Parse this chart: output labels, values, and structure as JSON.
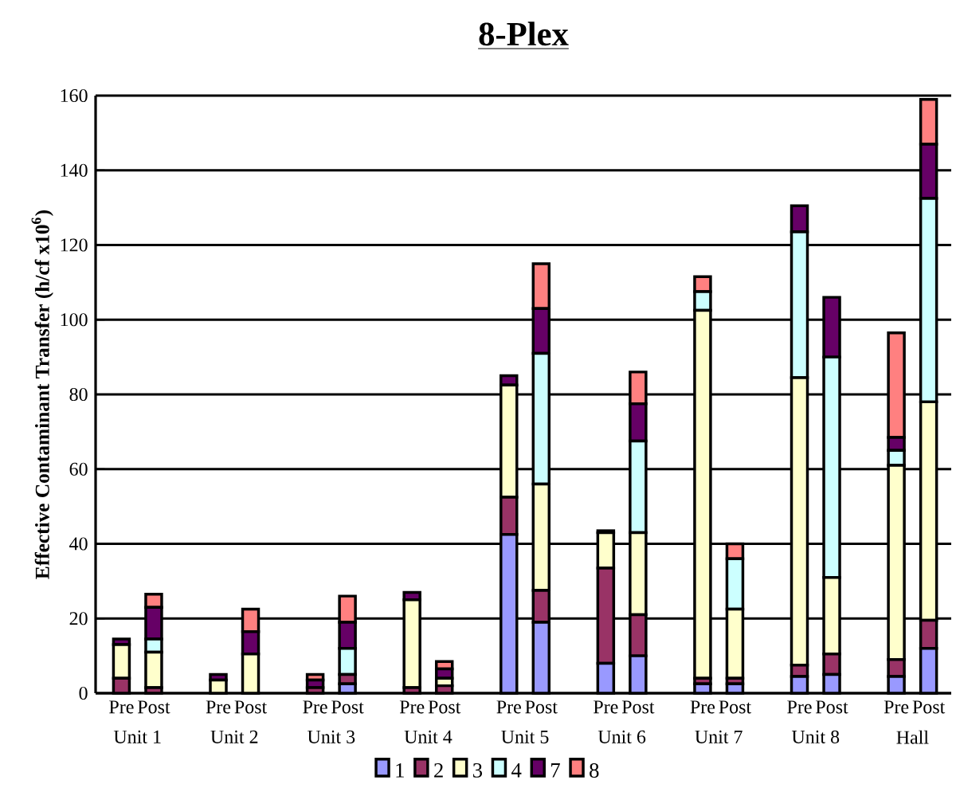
{
  "chart_data": {
    "type": "bar",
    "title": "8-Plex",
    "ylabel": "Effective Contaminant Transfer (h/cf x10$^{6}$)",
    "categories": [
      "Pre",
      "Post",
      null,
      "Pre",
      "Post",
      null,
      "Pre",
      "Post",
      null,
      "Pre",
      "Post",
      null,
      "Pre",
      "Post",
      null,
      "Pre",
      "Post",
      null,
      "Pre",
      "Post",
      null,
      "Pre",
      "Post",
      null,
      "Pre",
      "Post"
    ],
    "series": [
      {
        "name": "1",
        "color": "#9999ff",
        "values": [
          0,
          0,
          null,
          0,
          0,
          null,
          0,
          2.5,
          null,
          0,
          0,
          null,
          42.5,
          19,
          null,
          8,
          10,
          null,
          2.5,
          2.5,
          null,
          4.5,
          5,
          null,
          4.5,
          12
        ]
      },
      {
        "name": "2",
        "color": "#993366",
        "values": [
          4,
          1.5,
          null,
          0,
          0,
          null,
          1.5,
          2.5,
          null,
          1.5,
          2,
          null,
          10,
          8.5,
          null,
          25.5,
          11,
          null,
          1.5,
          1.5,
          null,
          3,
          5.5,
          null,
          4.5,
          7.5
        ]
      },
      {
        "name": "3",
        "color": "#ffffcc",
        "values": [
          9,
          9.5,
          null,
          3.5,
          10.5,
          null,
          0,
          0,
          null,
          23.5,
          2,
          null,
          30,
          28.5,
          null,
          9.5,
          22,
          null,
          98.5,
          18.5,
          null,
          77,
          20.5,
          null,
          52,
          58.5
        ]
      },
      {
        "name": "4",
        "color": "#ccffff",
        "values": [
          0,
          3.5,
          null,
          0,
          0,
          null,
          0,
          7,
          null,
          0,
          0,
          null,
          0,
          35,
          null,
          0,
          24.5,
          null,
          5,
          13.5,
          null,
          39,
          59,
          null,
          4,
          54.5
        ]
      },
      {
        "name": "7",
        "color": "#660066",
        "values": [
          1.5,
          8.5,
          null,
          1.5,
          6,
          null,
          2,
          7,
          null,
          2,
          2.5,
          null,
          2.5,
          12,
          null,
          0.5,
          10,
          null,
          0,
          0,
          null,
          7,
          16,
          null,
          3.5,
          14.5
        ]
      },
      {
        "name": "8",
        "color": "#ff8080",
        "values": [
          0,
          3.5,
          null,
          0,
          6,
          null,
          1.5,
          7,
          null,
          0,
          2,
          null,
          0,
          12,
          null,
          0,
          8.5,
          null,
          4,
          4,
          null,
          0,
          0,
          null,
          28,
          12
        ]
      }
    ],
    "stacked": true,
    "ylim": [
      0,
      160
    ],
    "yticks": [
      0,
      20,
      40,
      60,
      80,
      100,
      120,
      140,
      160
    ],
    "grid": "y",
    "legend": "bottom",
    "annotations": [
      "Unit 1",
      "Unit 2",
      "Unit 3",
      "Unit 4",
      "Unit 5",
      "Unit 6",
      "Unit 7",
      "Unit 8",
      "Hall"
    ]
  }
}
